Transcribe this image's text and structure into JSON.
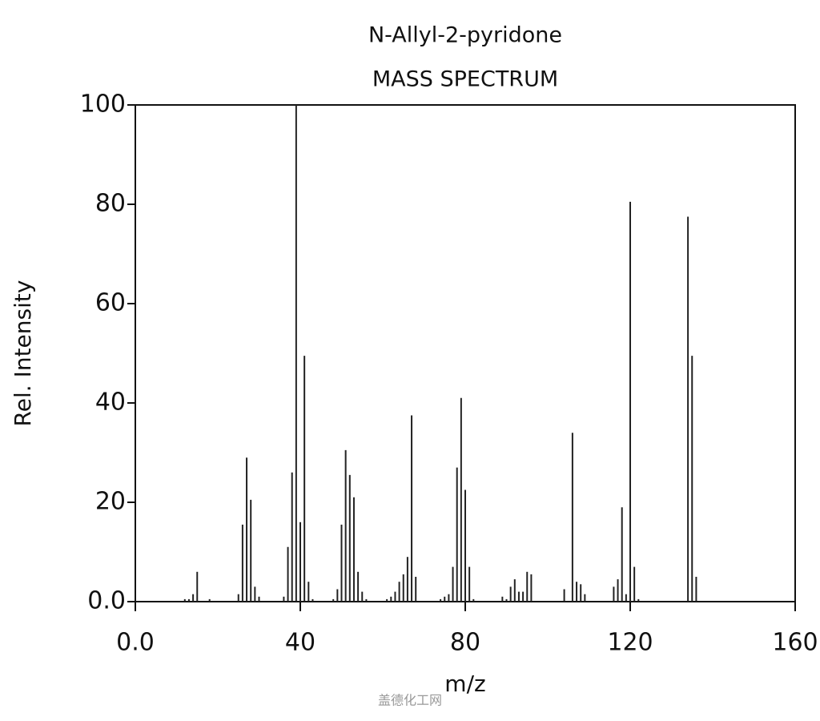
{
  "chart_data": {
    "type": "stem",
    "title": "N-Allyl-2-pyridone",
    "subtitle": "MASS SPECTRUM",
    "x_label": "m/z",
    "y_label": "Rel. Intensity",
    "color": "#222222",
    "xlim": [
      0,
      160
    ],
    "ylim": [
      0,
      100
    ],
    "xticks": [
      {
        "value": 0,
        "label": "0.0"
      },
      40,
      80,
      120,
      160
    ],
    "yticks": [
      {
        "value": 0,
        "label": "0.0"
      },
      20,
      40,
      60,
      80,
      100
    ],
    "x": [
      12,
      13,
      14,
      15,
      18,
      25,
      26,
      27,
      28,
      29,
      30,
      36,
      37,
      38,
      39,
      40,
      41,
      42,
      43,
      48,
      49,
      50,
      51,
      52,
      53,
      54,
      55,
      56,
      61,
      62,
      63,
      64,
      65,
      66,
      67,
      68,
      74,
      75,
      76,
      77,
      78,
      79,
      80,
      81,
      82,
      89,
      90,
      91,
      92,
      93,
      94,
      95,
      96,
      104,
      106,
      107,
      108,
      109,
      116,
      117,
      118,
      119,
      120,
      121,
      122,
      134,
      135,
      136
    ],
    "values": [
      0.5,
      0.5,
      1.5,
      6,
      0.5,
      1.5,
      15.5,
      29,
      20.5,
      3,
      1,
      1,
      11,
      26,
      100,
      16,
      49.5,
      4,
      0.5,
      0.5,
      2.5,
      15.5,
      30.5,
      25.5,
      21,
      6,
      2,
      0.5,
      0.5,
      1,
      2,
      4,
      5.5,
      9,
      37.5,
      5,
      0.5,
      1,
      1.5,
      7,
      27,
      41,
      22.5,
      7,
      0.5,
      1,
      0.5,
      3,
      4.5,
      2,
      2,
      6,
      5.5,
      2.5,
      34,
      4,
      3.5,
      1.5,
      3,
      4.5,
      19,
      1.5,
      80.5,
      7,
      0.5,
      77.5,
      49.5,
      5
    ]
  },
  "watermark": "盖德化工网"
}
